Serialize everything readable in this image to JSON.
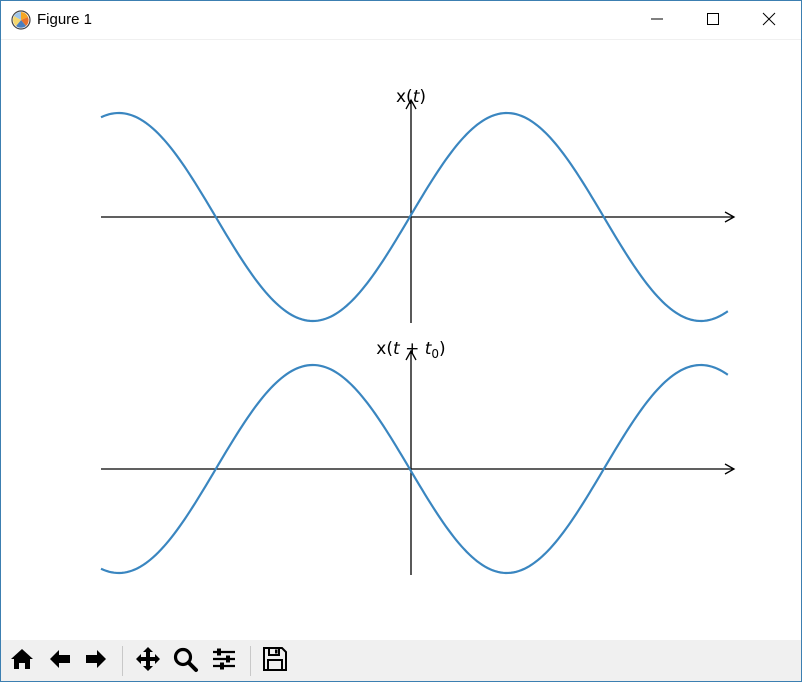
{
  "window": {
    "title": "Figure 1",
    "app_icon": "matplotlib-icon",
    "controls": [
      "minimize-icon",
      "maximize-icon",
      "close-icon"
    ]
  },
  "toolbar": {
    "buttons": [
      {
        "name": "home-button",
        "icon": "home-icon"
      },
      {
        "name": "back-button",
        "icon": "arrow-left-icon"
      },
      {
        "name": "forward-button",
        "icon": "arrow-right-icon"
      },
      {
        "name": "pan-button",
        "icon": "move-icon"
      },
      {
        "name": "zoom-button",
        "icon": "magnifier-icon"
      },
      {
        "name": "subplots-button",
        "icon": "sliders-icon"
      },
      {
        "name": "save-button",
        "icon": "floppy-disk-icon"
      }
    ]
  },
  "chart_data": [
    {
      "type": "line",
      "ylabel_parts": {
        "base": "x(",
        "var": "t",
        "close": ")"
      },
      "xlim": [
        -10,
        10.5
      ],
      "ylim": [
        -1,
        1
      ],
      "grid": false,
      "series": [
        {
          "function": "sin(0.5t)",
          "color": "#3a86c0",
          "x_range": [
            -10,
            10.3
          ]
        }
      ]
    },
    {
      "type": "line",
      "ylabel_parts": {
        "base": "x(",
        "var": "t",
        "plus": " + ",
        "var2": "t",
        "sub": "0",
        "close": ")"
      },
      "xlim": [
        -10,
        10.5
      ],
      "ylim": [
        -1,
        1
      ],
      "grid": false,
      "series": [
        {
          "function": "-sin(0.5t)",
          "color": "#3a86c0",
          "x_range": [
            -10,
            10.3
          ]
        }
      ]
    }
  ]
}
